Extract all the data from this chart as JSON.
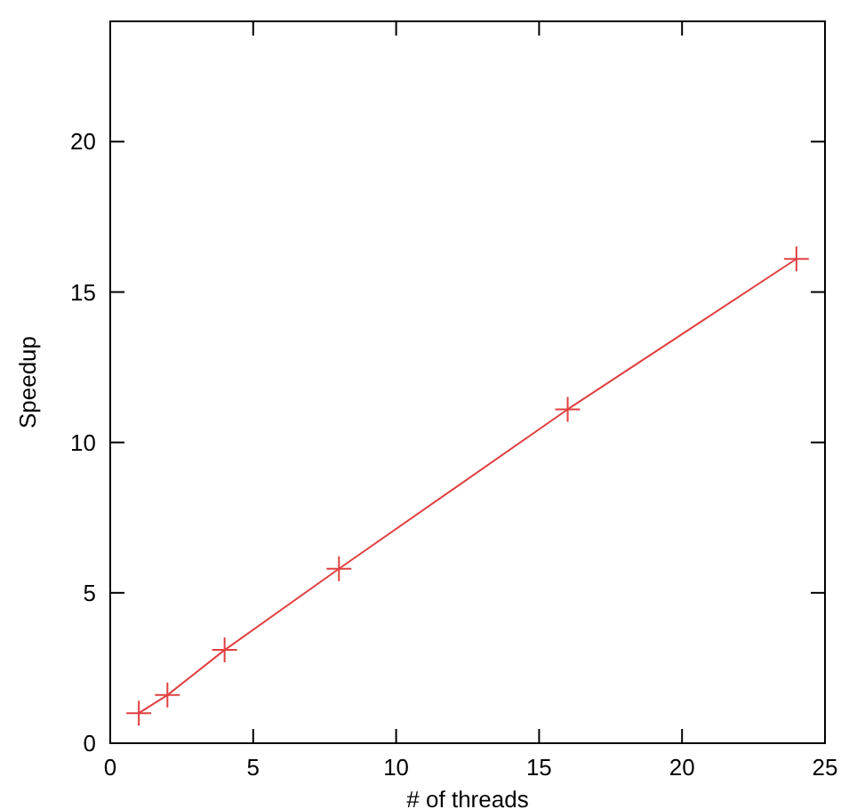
{
  "chart_data": {
    "type": "line",
    "xlabel": "# of threads",
    "ylabel": "Speedup",
    "x": [
      1,
      2,
      4,
      8,
      16,
      24
    ],
    "series": [
      {
        "color": "#e04040",
        "values": [
          1,
          1.6,
          3.1,
          5.8,
          11.1,
          16.1
        ]
      }
    ],
    "xlim": [
      0,
      25
    ],
    "xticks": [
      0,
      5,
      10,
      15,
      20,
      25
    ],
    "ylim": [
      0,
      24
    ],
    "yticks": [
      0,
      5,
      10,
      15,
      20
    ],
    "grid": false,
    "marker": "cross",
    "line_style": "solid"
  }
}
